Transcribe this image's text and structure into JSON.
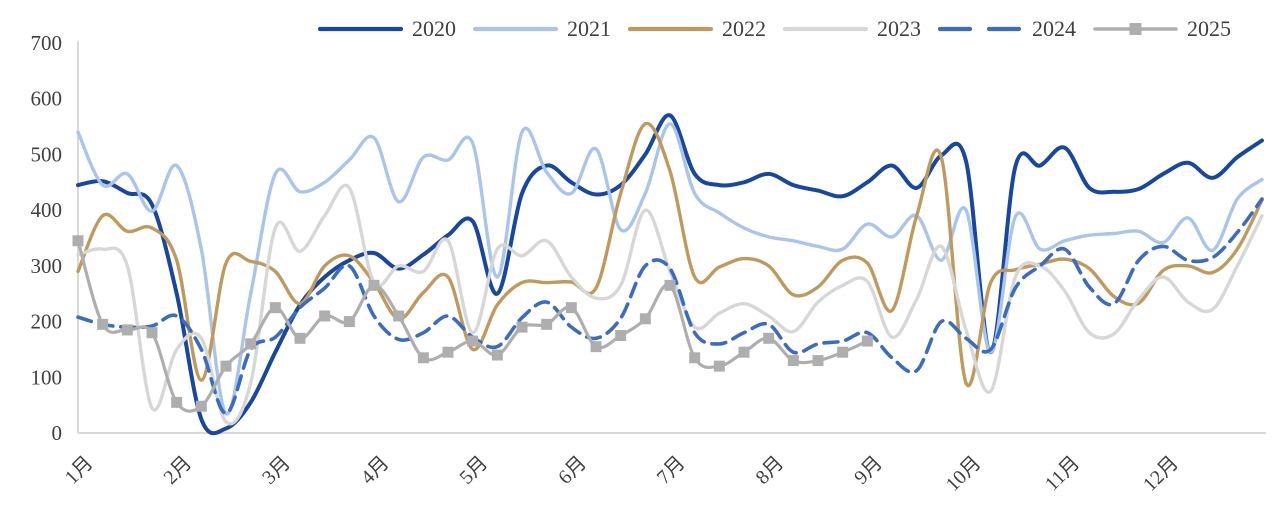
{
  "chart_data": {
    "type": "line",
    "title": "",
    "xlabel": "",
    "ylabel": "",
    "ylim": [
      0,
      700
    ],
    "y_ticks": [
      "0",
      "100",
      "200",
      "300",
      "400",
      "500",
      "600",
      "700"
    ],
    "x_ticks": [
      "1月",
      "2月",
      "3月",
      "4月",
      "5月",
      "6月",
      "7月",
      "8月",
      "9月",
      "10月",
      "11月",
      "12月"
    ],
    "grid": "off",
    "legend_position": "top",
    "axis_color": "#d9d9d9",
    "tick_label_color": "#3f3f3f",
    "points_per_month": 4,
    "series": [
      {
        "name": "2020",
        "color": "#17479e",
        "style": "solid",
        "width": 4,
        "values": [
          445,
          452,
          431,
          410,
          250,
          25,
          8,
          55,
          145,
          230,
          280,
          310,
          323,
          295,
          320,
          355,
          380,
          250,
          430,
          480,
          450,
          428,
          445,
          500,
          570,
          465,
          445,
          450,
          465,
          445,
          435,
          425,
          450,
          480,
          440,
          498,
          488,
          145,
          478,
          480,
          512,
          440,
          433,
          438,
          465,
          485,
          458,
          495,
          525
        ]
      },
      {
        "name": "2021",
        "color": "#a9c5ec",
        "style": "solid",
        "width": 3.4,
        "values": [
          540,
          445,
          465,
          398,
          480,
          330,
          35,
          250,
          465,
          433,
          450,
          490,
          530,
          415,
          495,
          490,
          520,
          280,
          540,
          468,
          430,
          510,
          365,
          430,
          555,
          430,
          395,
          368,
          352,
          345,
          335,
          330,
          375,
          352,
          390,
          310,
          400,
          145,
          388,
          330,
          345,
          355,
          358,
          362,
          342,
          386,
          328,
          420,
          455
        ]
      },
      {
        "name": "2022",
        "color": "#c09a5d",
        "style": "solid",
        "width": 3.4,
        "values": [
          290,
          390,
          362,
          368,
          310,
          95,
          305,
          308,
          290,
          232,
          300,
          318,
          270,
          205,
          252,
          280,
          150,
          230,
          270,
          270,
          271,
          260,
          430,
          555,
          470,
          280,
          298,
          313,
          300,
          248,
          262,
          310,
          305,
          220,
          390,
          495,
          90,
          270,
          293,
          303,
          312,
          295,
          245,
          233,
          292,
          300,
          288,
          330,
          418
        ]
      },
      {
        "name": "2023",
        "color": "#d7d7d7",
        "style": "solid",
        "width": 3.4,
        "values": [
          320,
          330,
          300,
          45,
          150,
          170,
          20,
          90,
          368,
          326,
          390,
          440,
          270,
          300,
          290,
          345,
          180,
          330,
          318,
          345,
          280,
          242,
          265,
          400,
          290,
          190,
          215,
          232,
          210,
          182,
          235,
          265,
          272,
          172,
          240,
          335,
          185,
          75,
          280,
          300,
          255,
          180,
          178,
          240,
          280,
          235,
          222,
          300,
          390
        ]
      },
      {
        "name": "2024",
        "color": "#3c6cc0",
        "style": "dashed",
        "width": 3.6,
        "values": [
          208,
          195,
          190,
          192,
          210,
          150,
          35,
          150,
          172,
          225,
          260,
          300,
          210,
          168,
          180,
          210,
          172,
          155,
          207,
          235,
          190,
          170,
          206,
          300,
          295,
          180,
          160,
          180,
          195,
          145,
          160,
          165,
          180,
          135,
          112,
          200,
          170,
          150,
          260,
          300,
          330,
          262,
          232,
          310,
          335,
          310,
          315,
          360,
          420
        ]
      },
      {
        "name": "2025",
        "color": "#aeaeae",
        "style": "solid-marker",
        "marker": "square",
        "width": 3.2,
        "values": [
          345,
          195,
          185,
          180,
          55,
          48,
          120,
          160,
          225,
          170,
          210,
          200,
          265,
          210,
          135,
          145,
          165,
          140,
          190,
          195,
          225,
          155,
          175,
          205,
          265,
          135,
          120,
          145,
          170,
          130,
          130,
          145,
          165
        ]
      }
    ]
  }
}
